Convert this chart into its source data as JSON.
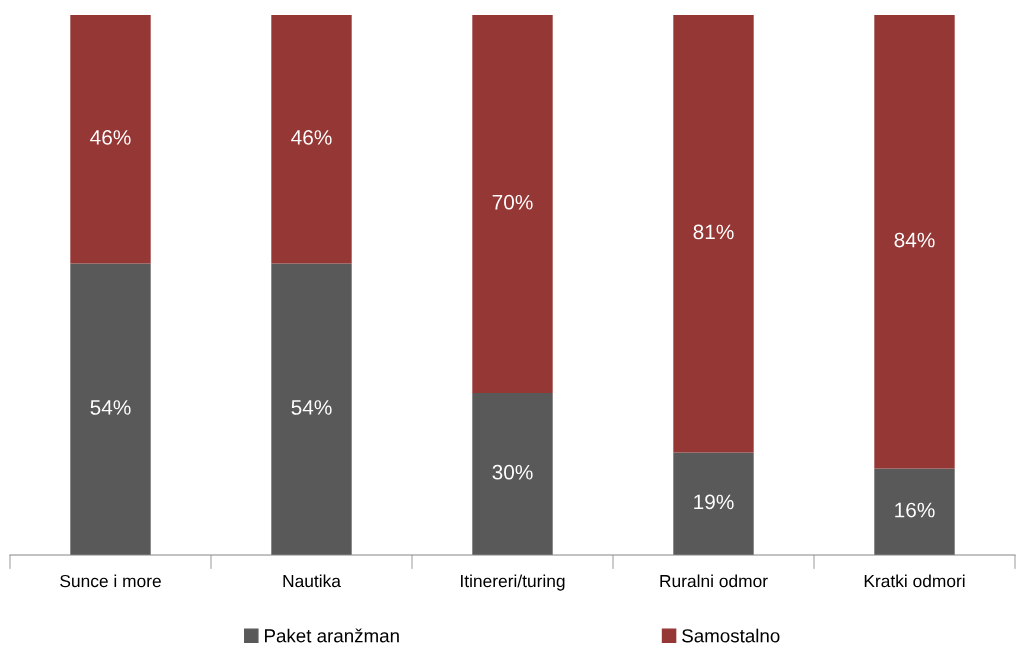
{
  "chart_data": {
    "type": "bar",
    "stacked": true,
    "categories": [
      "Sunce i more",
      "Nautika",
      "Itinereri/turing",
      "Ruralni odmor",
      "Kratki odmori"
    ],
    "series": [
      {
        "name": "Paket aranžman",
        "color": "#595959",
        "values": [
          54,
          54,
          30,
          19,
          16
        ],
        "value_labels": [
          "54%",
          "54%",
          "30%",
          "19%",
          "16%"
        ]
      },
      {
        "name": "Samostalno",
        "color": "#953735",
        "values": [
          46,
          46,
          70,
          81,
          84
        ],
        "value_labels": [
          "46%",
          "46%",
          "70%",
          "81%",
          "84%"
        ]
      }
    ],
    "tick_labels": "x",
    "grid": false,
    "legend": "bottom"
  }
}
